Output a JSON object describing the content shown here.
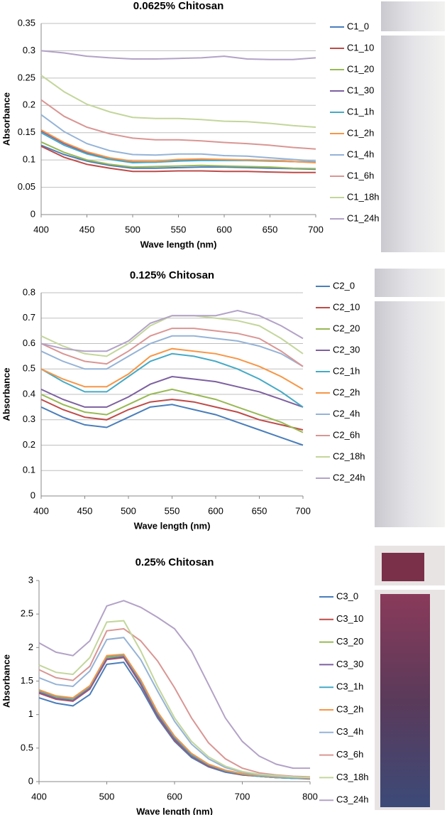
{
  "chart_data": [
    {
      "type": "line",
      "title": "0.0625% Chitosan",
      "x_label": "Wave length (nm)",
      "y_label": "Absorbance",
      "x": [
        400,
        425,
        450,
        475,
        500,
        525,
        550,
        575,
        600,
        625,
        650,
        675,
        700
      ],
      "xlim": [
        400,
        700
      ],
      "xticks": [
        400,
        450,
        500,
        550,
        600,
        650,
        700
      ],
      "ylim": [
        0,
        0.35
      ],
      "yticks": [
        0,
        0.05,
        0.1,
        0.15,
        0.2,
        0.25,
        0.3,
        0.35
      ],
      "grid": true,
      "series": [
        {
          "name": "C1_0",
          "color": "#4a7ebb",
          "values": [
            0.127,
            0.11,
            0.098,
            0.09,
            0.085,
            0.085,
            0.086,
            0.087,
            0.087,
            0.086,
            0.085,
            0.084,
            0.083
          ]
        },
        {
          "name": "C1_10",
          "color": "#be4b48",
          "values": [
            0.125,
            0.105,
            0.092,
            0.085,
            0.079,
            0.079,
            0.08,
            0.08,
            0.079,
            0.079,
            0.078,
            0.077,
            0.077
          ]
        },
        {
          "name": "C1_20",
          "color": "#98b954",
          "values": [
            0.133,
            0.114,
            0.1,
            0.092,
            0.087,
            0.088,
            0.089,
            0.09,
            0.089,
            0.088,
            0.087,
            0.085,
            0.084
          ]
        },
        {
          "name": "C1_30",
          "color": "#7d60a0",
          "values": [
            0.153,
            0.13,
            0.113,
            0.102,
            0.096,
            0.096,
            0.099,
            0.1,
            0.1,
            0.1,
            0.099,
            0.097,
            0.096
          ]
        },
        {
          "name": "C1_1h",
          "color": "#46aac5",
          "values": [
            0.15,
            0.127,
            0.111,
            0.101,
            0.095,
            0.096,
            0.098,
            0.099,
            0.099,
            0.099,
            0.098,
            0.097,
            0.096
          ]
        },
        {
          "name": "C1_2h",
          "color": "#f79646",
          "values": [
            0.155,
            0.132,
            0.115,
            0.104,
            0.098,
            0.098,
            0.101,
            0.102,
            0.101,
            0.1,
            0.099,
            0.097,
            0.095
          ]
        },
        {
          "name": "C1_4h",
          "color": "#95b3d7",
          "values": [
            0.183,
            0.152,
            0.13,
            0.117,
            0.11,
            0.109,
            0.111,
            0.111,
            0.108,
            0.107,
            0.104,
            0.101,
            0.098
          ]
        },
        {
          "name": "C1_6h",
          "color": "#d99694",
          "values": [
            0.21,
            0.18,
            0.16,
            0.148,
            0.14,
            0.137,
            0.137,
            0.135,
            0.132,
            0.13,
            0.127,
            0.123,
            0.12
          ]
        },
        {
          "name": "C1_18h",
          "color": "#c3d69b",
          "values": [
            0.255,
            0.225,
            0.202,
            0.188,
            0.178,
            0.176,
            0.176,
            0.174,
            0.171,
            0.17,
            0.167,
            0.163,
            0.16
          ]
        },
        {
          "name": "C1_24h",
          "color": "#b3a2c7",
          "values": [
            0.3,
            0.296,
            0.29,
            0.287,
            0.285,
            0.285,
            0.286,
            0.287,
            0.29,
            0.285,
            0.284,
            0.284,
            0.287
          ]
        }
      ]
    },
    {
      "type": "line",
      "title": "0.125% Chitosan",
      "x_label": "Wave length (nm)",
      "y_label": "Absorbance",
      "x": [
        400,
        425,
        450,
        475,
        500,
        525,
        550,
        575,
        600,
        625,
        650,
        675,
        700
      ],
      "xlim": [
        400,
        700
      ],
      "xticks": [
        400,
        450,
        500,
        550,
        600,
        650,
        700
      ],
      "ylim": [
        0,
        0.8
      ],
      "yticks": [
        0,
        0.1,
        0.2,
        0.3,
        0.4,
        0.5,
        0.6,
        0.7,
        0.8
      ],
      "grid": true,
      "series": [
        {
          "name": "C2_0",
          "color": "#4a7ebb",
          "values": [
            0.35,
            0.31,
            0.28,
            0.27,
            0.31,
            0.35,
            0.36,
            0.34,
            0.32,
            0.29,
            0.26,
            0.23,
            0.2
          ]
        },
        {
          "name": "C2_10",
          "color": "#be4b48",
          "values": [
            0.38,
            0.34,
            0.31,
            0.3,
            0.34,
            0.37,
            0.38,
            0.37,
            0.35,
            0.33,
            0.3,
            0.28,
            0.26
          ]
        },
        {
          "name": "C2_20",
          "color": "#98b954",
          "values": [
            0.4,
            0.36,
            0.33,
            0.32,
            0.36,
            0.4,
            0.42,
            0.4,
            0.38,
            0.35,
            0.32,
            0.29,
            0.25
          ]
        },
        {
          "name": "C2_30",
          "color": "#7d60a0",
          "values": [
            0.42,
            0.38,
            0.35,
            0.35,
            0.39,
            0.44,
            0.47,
            0.46,
            0.45,
            0.43,
            0.41,
            0.38,
            0.35
          ]
        },
        {
          "name": "C2_1h",
          "color": "#46aac5",
          "values": [
            0.5,
            0.45,
            0.41,
            0.41,
            0.47,
            0.53,
            0.56,
            0.55,
            0.53,
            0.5,
            0.46,
            0.41,
            0.35
          ]
        },
        {
          "name": "C2_2h",
          "color": "#f79646",
          "values": [
            0.5,
            0.46,
            0.43,
            0.43,
            0.48,
            0.55,
            0.58,
            0.57,
            0.56,
            0.54,
            0.51,
            0.47,
            0.42
          ]
        },
        {
          "name": "C2_4h",
          "color": "#95b3d7",
          "values": [
            0.57,
            0.53,
            0.5,
            0.5,
            0.55,
            0.6,
            0.63,
            0.63,
            0.62,
            0.61,
            0.59,
            0.56,
            0.51
          ]
        },
        {
          "name": "C2_6h",
          "color": "#d99694",
          "values": [
            0.6,
            0.56,
            0.53,
            0.52,
            0.57,
            0.63,
            0.66,
            0.66,
            0.65,
            0.64,
            0.62,
            0.57,
            0.51
          ]
        },
        {
          "name": "C2_18h",
          "color": "#c3d69b",
          "values": [
            0.63,
            0.59,
            0.56,
            0.55,
            0.6,
            0.67,
            0.71,
            0.71,
            0.7,
            0.69,
            0.67,
            0.62,
            0.56
          ]
        },
        {
          "name": "C2_24h",
          "color": "#b3a2c7",
          "values": [
            0.6,
            0.58,
            0.57,
            0.57,
            0.61,
            0.68,
            0.71,
            0.71,
            0.71,
            0.73,
            0.71,
            0.67,
            0.62
          ]
        }
      ]
    },
    {
      "type": "line",
      "title": "0.25% Chitosan",
      "x_label": "Wave length (nm)",
      "y_label": "Absorbance",
      "x": [
        400,
        425,
        450,
        475,
        500,
        525,
        550,
        575,
        600,
        625,
        650,
        675,
        700,
        725,
        750,
        775,
        800
      ],
      "xlim": [
        400,
        800
      ],
      "xticks": [
        400,
        500,
        600,
        700,
        800
      ],
      "ylim": [
        0,
        3
      ],
      "yticks": [
        0,
        0.5,
        1,
        1.5,
        2,
        2.5,
        3
      ],
      "grid": false,
      "series": [
        {
          "name": "C3_0",
          "color": "#4a7ebb",
          "values": [
            1.25,
            1.17,
            1.13,
            1.3,
            1.75,
            1.78,
            1.4,
            0.95,
            0.6,
            0.36,
            0.22,
            0.14,
            0.1,
            0.08,
            0.06,
            0.05,
            0.04
          ]
        },
        {
          "name": "C3_10",
          "color": "#be4b48",
          "values": [
            1.32,
            1.23,
            1.2,
            1.38,
            1.82,
            1.85,
            1.45,
            0.98,
            0.62,
            0.38,
            0.23,
            0.15,
            0.1,
            0.08,
            0.06,
            0.05,
            0.05
          ]
        },
        {
          "name": "C3_20",
          "color": "#98b954",
          "values": [
            1.35,
            1.26,
            1.22,
            1.4,
            1.85,
            1.87,
            1.48,
            1.0,
            0.64,
            0.39,
            0.24,
            0.15,
            0.11,
            0.08,
            0.06,
            0.05,
            0.05
          ]
        },
        {
          "name": "C3_30",
          "color": "#7d60a0",
          "values": [
            1.33,
            1.24,
            1.21,
            1.39,
            1.83,
            1.86,
            1.47,
            1.0,
            0.64,
            0.39,
            0.24,
            0.15,
            0.11,
            0.08,
            0.06,
            0.05,
            0.05
          ]
        },
        {
          "name": "C3_1h",
          "color": "#46aac5",
          "values": [
            1.36,
            1.27,
            1.24,
            1.42,
            1.87,
            1.89,
            1.5,
            1.02,
            0.66,
            0.4,
            0.25,
            0.16,
            0.11,
            0.08,
            0.06,
            0.05,
            0.05
          ]
        },
        {
          "name": "C3_2h",
          "color": "#f79646",
          "values": [
            1.37,
            1.28,
            1.25,
            1.43,
            1.88,
            1.9,
            1.52,
            1.04,
            0.68,
            0.42,
            0.26,
            0.17,
            0.12,
            0.09,
            0.07,
            0.06,
            0.05
          ]
        },
        {
          "name": "C3_4h",
          "color": "#95b3d7",
          "values": [
            1.55,
            1.45,
            1.42,
            1.65,
            2.12,
            2.15,
            1.82,
            1.35,
            0.9,
            0.56,
            0.34,
            0.21,
            0.14,
            0.1,
            0.08,
            0.06,
            0.06
          ]
        },
        {
          "name": "C3_6h",
          "color": "#d99694",
          "values": [
            1.67,
            1.55,
            1.51,
            1.72,
            2.25,
            2.28,
            2.1,
            1.8,
            1.4,
            0.95,
            0.58,
            0.34,
            0.2,
            0.13,
            0.1,
            0.08,
            0.07
          ]
        },
        {
          "name": "C3_18h",
          "color": "#c3d69b",
          "values": [
            1.74,
            1.63,
            1.6,
            1.85,
            2.38,
            2.4,
            1.95,
            1.42,
            0.95,
            0.6,
            0.37,
            0.23,
            0.15,
            0.11,
            0.09,
            0.07,
            0.06
          ]
        },
        {
          "name": "C3_24h",
          "color": "#b3a2c7",
          "values": [
            2.07,
            1.93,
            1.88,
            2.1,
            2.62,
            2.7,
            2.6,
            2.45,
            2.28,
            1.95,
            1.45,
            0.95,
            0.6,
            0.38,
            0.26,
            0.2,
            0.2
          ]
        }
      ]
    }
  ]
}
